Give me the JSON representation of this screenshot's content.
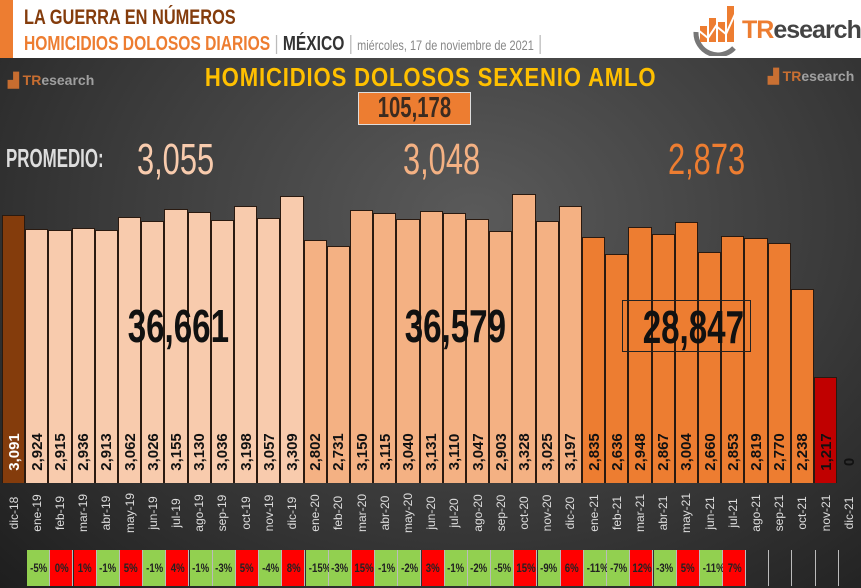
{
  "header": {
    "line1": "LA GUERRA EN NÚMEROS",
    "line2_a": "HOMICIDIOS DOLOSOS DIARIOS",
    "sep": " | ",
    "line2_b": "MÉXICO",
    "line2_c": "miércoles, 17 de noviembre de 2021",
    "logo": "TResearch"
  },
  "chart_data": {
    "type": "bar",
    "title": "HOMICIDIOS DOLOSOS SEXENIO AMLO",
    "total": "105,178",
    "promedio_label": "PROMEDIO:",
    "averages": [
      "3,055",
      "3,048",
      "2,873"
    ],
    "year_totals": [
      "36,661",
      "36,579",
      "28,847"
    ],
    "categories": [
      "dic-18",
      "ene-19",
      "feb-19",
      "mar-19",
      "abr-19",
      "may-19",
      "jun-19",
      "jul-19",
      "ago-19",
      "sep-19",
      "oct-19",
      "nov-19",
      "dic-19",
      "ene-20",
      "feb-20",
      "mar-20",
      "abr-20",
      "may-20",
      "jun-20",
      "jul-20",
      "ago-20",
      "sep-20",
      "oct-20",
      "nov-20",
      "dic-20",
      "ene-21",
      "feb-21",
      "mar-21",
      "abr-21",
      "may-21",
      "jun-21",
      "jul-21",
      "ago-21",
      "sep-21",
      "oct-21",
      "nov-21",
      "dic-21"
    ],
    "values": [
      3091,
      2924,
      2915,
      2936,
      2913,
      3062,
      3026,
      3155,
      3130,
      3036,
      3198,
      3057,
      3309,
      2802,
      2731,
      3150,
      3115,
      3040,
      3131,
      3110,
      3047,
      2903,
      3328,
      3025,
      3197,
      2835,
      2636,
      2948,
      2867,
      3004,
      2660,
      2853,
      2819,
      2770,
      2238,
      1217,
      0
    ],
    "labels": [
      "3,091",
      "2,924",
      "2,915",
      "2,936",
      "2,913",
      "3,062",
      "3,026",
      "3,155",
      "3,130",
      "3,036",
      "3,198",
      "3,057",
      "3,309",
      "2,802",
      "2,731",
      "3,150",
      "3,115",
      "3,040",
      "3,131",
      "3,110",
      "3,047",
      "2,903",
      "3,328",
      "3,025",
      "3,197",
      "2,835",
      "2,636",
      "2,948",
      "2,867",
      "3,004",
      "2,660",
      "2,853",
      "2,819",
      "2,770",
      "2,238",
      "1,217",
      "0"
    ],
    "pct_change": [
      "-5%",
      "0%",
      "1%",
      "-1%",
      "5%",
      "-1%",
      "4%",
      "-1%",
      "-3%",
      "5%",
      "-4%",
      "8%",
      "-15%",
      "-3%",
      "15%",
      "-1%",
      "-2%",
      "3%",
      "-1%",
      "-2%",
      "-5%",
      "15%",
      "-9%",
      "6%",
      "-11%",
      "-7%",
      "12%",
      "-3%",
      "5%",
      "-11%",
      "7%"
    ],
    "colors": {
      "dic-18": "#843c0c",
      "2019": "#f8cbad",
      "2020": "#f4b183",
      "2021": "#ed7d31",
      "current": "#c00000",
      "up": "#ff0000",
      "down": "#92d050"
    },
    "ylim": [
      0,
      3400
    ]
  }
}
